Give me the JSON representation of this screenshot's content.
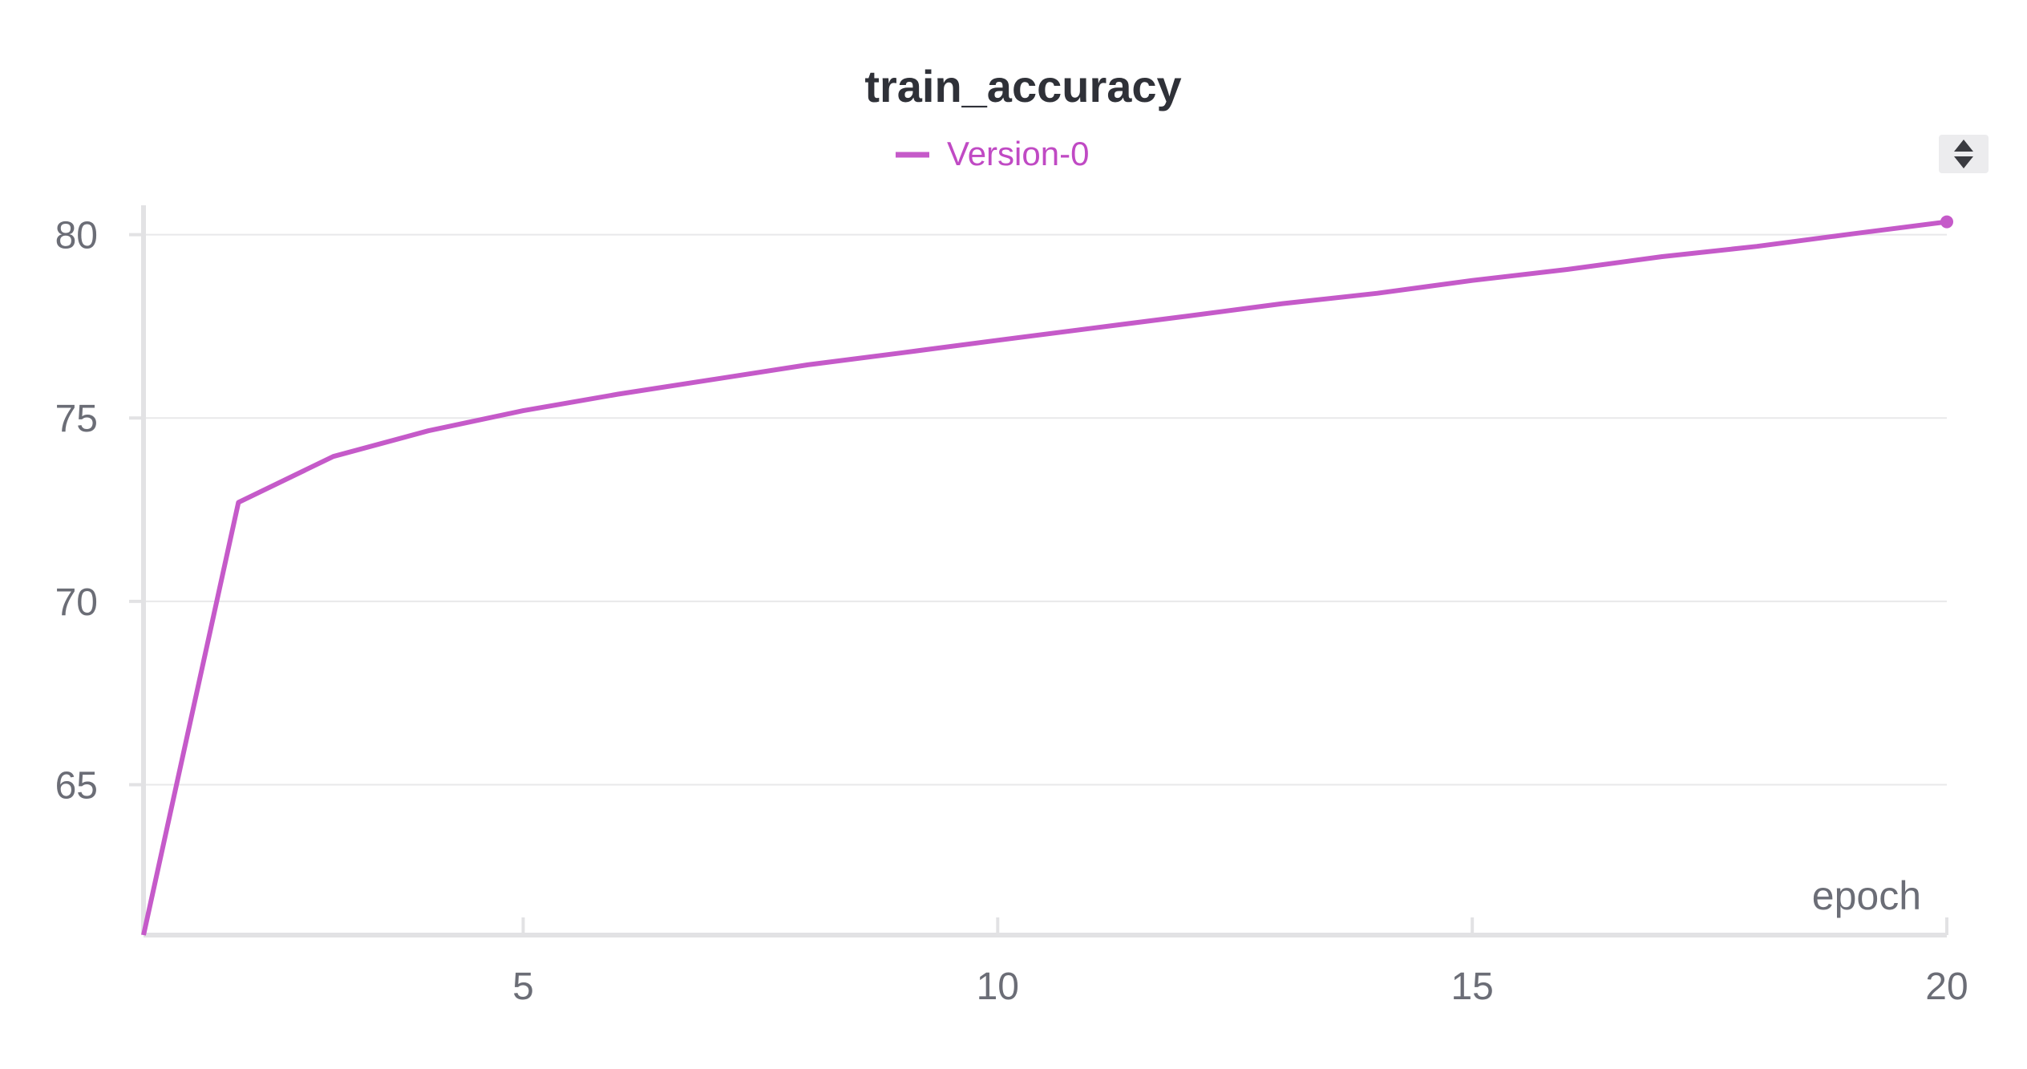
{
  "colors": {
    "series": "#c55ac9",
    "legend_text": "#c04ac4",
    "grid": "#e8e8ea",
    "axis": "#e2e2e4",
    "tick_text": "#6b6d76",
    "title_text": "#2f3138"
  },
  "controls": {
    "sort_icon": "sort-up-down-icon"
  },
  "chart_data": {
    "type": "line",
    "title": "train_accuracy",
    "xlabel": "epoch",
    "ylabel": "",
    "legend_position": "top-center",
    "grid": true,
    "x_ticks": [
      5,
      10,
      15,
      20
    ],
    "y_ticks": [
      65,
      70,
      75,
      80
    ],
    "xlim": [
      1,
      20
    ],
    "ylim": [
      60.9,
      80.3
    ],
    "series": [
      {
        "name": "Version-0",
        "x": [
          1,
          2,
          3,
          4,
          5,
          6,
          7,
          8,
          9,
          10,
          11,
          12,
          13,
          14,
          15,
          16,
          17,
          18,
          19,
          20
        ],
        "y": [
          60.9,
          72.7,
          73.95,
          74.65,
          75.2,
          75.65,
          76.05,
          76.45,
          76.78,
          77.12,
          77.45,
          77.78,
          78.12,
          78.4,
          78.75,
          79.05,
          79.4,
          79.68,
          80.02,
          80.35
        ]
      }
    ]
  }
}
